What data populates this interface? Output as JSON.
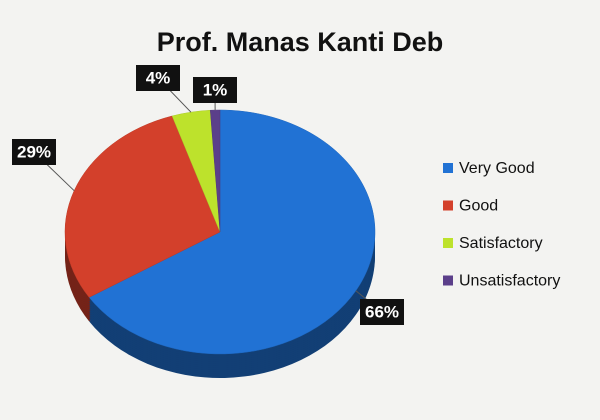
{
  "chart_data": {
    "type": "pie",
    "title": "Prof. Manas Kanti Deb",
    "categories": [
      "Very Good",
      "Good",
      "Satisfactory",
      "Unsatisfactory"
    ],
    "values": [
      66,
      29,
      4,
      1
    ],
    "value_labels": [
      "66%",
      "29%",
      "4%",
      "1%"
    ],
    "colors": [
      "#2172d4",
      "#d3402b",
      "#bde22c",
      "#5b3f8a"
    ],
    "legend": "right"
  }
}
